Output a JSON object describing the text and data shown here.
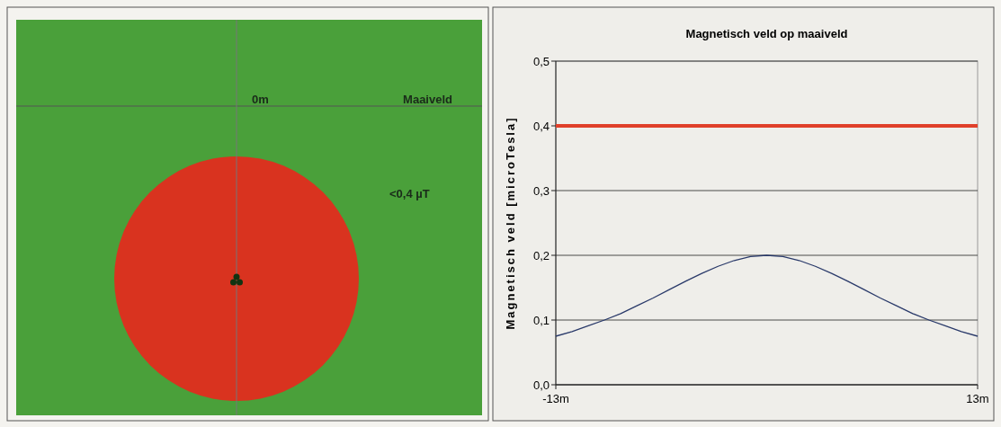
{
  "chart_data": [
    {
      "type": "other",
      "annotations": [
        "0m",
        "Maaiveld",
        "<0,4 µT"
      ]
    },
    {
      "type": "line",
      "title": "Magnetisch veld op maaiveld",
      "ylabel": "Magnetisch veld [microTesla]",
      "x": [
        -13,
        -12,
        -11,
        -10,
        -9,
        -8,
        -7,
        -6,
        -5,
        -4,
        -3,
        -2,
        -1,
        0,
        1,
        2,
        3,
        4,
        5,
        6,
        7,
        8,
        9,
        10,
        11,
        12,
        13
      ],
      "series": [
        {
          "color": "#2a3a6a",
          "values": [
            0.075,
            0.082,
            0.091,
            0.1,
            0.11,
            0.122,
            0.134,
            0.147,
            0.16,
            0.172,
            0.183,
            0.192,
            0.198,
            0.2,
            0.198,
            0.192,
            0.183,
            0.172,
            0.16,
            0.147,
            0.134,
            0.122,
            0.11,
            0.1,
            0.091,
            0.082,
            0.075
          ]
        }
      ],
      "xlim": [
        -13,
        13
      ],
      "xticks": [
        {
          "value": -13,
          "label": "-13m"
        },
        {
          "value": 13,
          "label": "13m"
        }
      ],
      "ylim": [
        0,
        0.5
      ],
      "yticks": [
        {
          "value": 0,
          "label": "0,0"
        },
        {
          "value": 0.1,
          "label": "0,1"
        },
        {
          "value": 0.2,
          "label": "0,2"
        },
        {
          "value": 0.3,
          "label": "0,3"
        },
        {
          "value": 0.4,
          "label": "0,4"
        },
        {
          "value": 0.5,
          "label": "0,5"
        }
      ],
      "ref_lines": [
        {
          "axis": "y",
          "value": 0.4,
          "color": "#e0402a"
        }
      ],
      "grid": "y",
      "marker": "none",
      "line_style": "solid"
    }
  ]
}
